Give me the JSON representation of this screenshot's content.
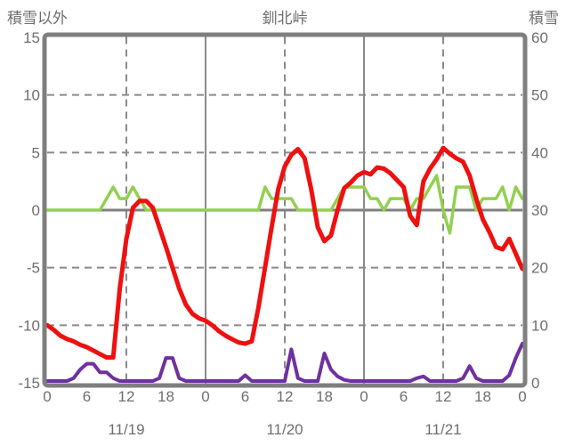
{
  "header": {
    "left_axis_title": "積雪以外",
    "chart_title": "釧北峠",
    "right_axis_title": "積雪"
  },
  "colors": {
    "frame": "#7f7f7f",
    "grid": "#8a8a8a",
    "text": "#6e6e6e",
    "background": "#ffffff",
    "red_line": "#ef1010",
    "green_line": "#92d050",
    "purple_line": "#7030a0"
  },
  "chart_data": {
    "type": "line",
    "title": "釧北峠",
    "legend": "none",
    "left_axis": {
      "title": "積雪以外",
      "min": -15,
      "max": 15,
      "ticks": [
        "15",
        "10",
        "5",
        "0",
        "-5",
        "-10",
        "-15"
      ],
      "tick_values": [
        15,
        10,
        5,
        0,
        -5,
        -10,
        -15
      ]
    },
    "right_axis": {
      "title": "積雪",
      "min": 0,
      "max": 60,
      "ticks": [
        "60",
        "50",
        "40",
        "30",
        "20",
        "10",
        "0"
      ],
      "tick_values": [
        60,
        50,
        40,
        30,
        20,
        10,
        0
      ]
    },
    "x_axis": {
      "unit": "hours",
      "range_hours": [
        0,
        72
      ],
      "tick_interval_hours": 6,
      "hour_tick_labels": [
        "0",
        "6",
        "12",
        "18",
        "0",
        "6",
        "12",
        "18",
        "0",
        "6",
        "12",
        "18",
        "0"
      ],
      "date_labels": [
        "11/19",
        "11/20",
        "11/21"
      ],
      "date_center_hours": [
        12,
        36,
        60
      ]
    },
    "grid": {
      "h_dashed_values": [
        10,
        5,
        -5,
        -10
      ],
      "h_zero_value": 0,
      "v_dashed_hours": [
        12,
        36,
        60
      ],
      "v_solid_hours": [
        24,
        48
      ]
    },
    "series": [
      {
        "name": "green-line",
        "axis": "left",
        "color": "#92d050",
        "stroke_width": 3.5,
        "x_step_hours": 1,
        "values": [
          0,
          0,
          0,
          0,
          0,
          0,
          0,
          0,
          0,
          1,
          2,
          1,
          1,
          2,
          1,
          0,
          0,
          0,
          0,
          0,
          0,
          0,
          0,
          0,
          0,
          0,
          0,
          0,
          0,
          0,
          0,
          0,
          0,
          2,
          1,
          1,
          1,
          1,
          0,
          0,
          0,
          0,
          0,
          0,
          1,
          2,
          2,
          2,
          2,
          1,
          1,
          0,
          1,
          1,
          1,
          0,
          1,
          1,
          2,
          3,
          0,
          -2,
          2,
          2,
          2,
          0,
          1,
          1,
          1,
          2,
          0,
          2,
          1
        ]
      },
      {
        "name": "red-line",
        "axis": "left",
        "color": "#ef1010",
        "stroke_width": 5,
        "x_step_hours": 1,
        "values": [
          -10.0,
          -10.4,
          -10.9,
          -11.2,
          -11.4,
          -11.7,
          -11.9,
          -12.2,
          -12.5,
          -12.8,
          -12.8,
          -6.8,
          -2.5,
          0.2,
          0.8,
          0.8,
          0.2,
          -1.5,
          -3.2,
          -5.0,
          -6.8,
          -8.2,
          -9.0,
          -9.4,
          -9.6,
          -10.0,
          -10.5,
          -10.9,
          -11.2,
          -11.5,
          -11.6,
          -11.4,
          -8.5,
          -5.0,
          -1.5,
          1.8,
          3.8,
          4.8,
          5.3,
          4.5,
          1.8,
          -1.5,
          -2.7,
          -2.2,
          0.0,
          1.9,
          2.4,
          3.0,
          3.3,
          3.1,
          3.7,
          3.6,
          3.2,
          2.6,
          2.0,
          -0.5,
          -1.3,
          2.5,
          3.6,
          4.4,
          5.4,
          4.9,
          4.5,
          4.2,
          3.0,
          1.0,
          -0.8,
          -1.9,
          -3.2,
          -3.4,
          -2.5,
          -3.8,
          -5.1
        ]
      },
      {
        "name": "purple-line",
        "axis": "right",
        "color": "#7030a0",
        "stroke_width": 4,
        "x_step_hours": 1,
        "values": [
          0,
          0,
          0,
          0,
          0.5,
          2,
          3,
          3,
          1.5,
          1.5,
          0.5,
          0,
          0,
          0,
          0,
          0,
          0,
          0.5,
          4,
          4,
          0.5,
          0,
          0,
          0,
          0,
          0,
          0,
          0,
          0,
          0,
          1,
          0,
          0,
          0,
          0,
          0,
          0,
          5.5,
          0.5,
          0,
          0,
          0,
          4.8,
          2,
          0.8,
          0.2,
          0,
          0,
          0,
          0,
          0,
          0,
          0,
          0,
          0,
          0,
          0.5,
          0.8,
          0,
          0,
          0,
          0,
          0,
          0.5,
          2.6,
          0.5,
          0,
          0,
          0,
          0,
          1,
          4,
          6.5
        ]
      }
    ]
  }
}
